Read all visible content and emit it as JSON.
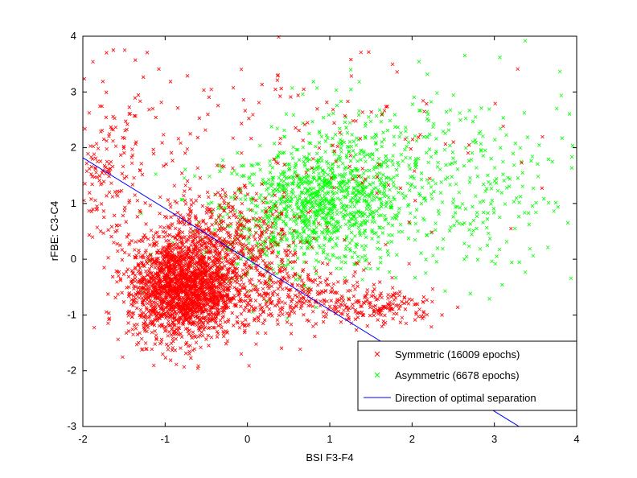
{
  "chart_data": {
    "type": "scatter",
    "title": "",
    "xlabel": "BSI F3-F4",
    "ylabel": "rFBE: C3-C4",
    "xlim": [
      -2,
      4
    ],
    "ylim": [
      -3,
      4
    ],
    "xticks": [
      "-2",
      "-1",
      "0",
      "1",
      "2",
      "3",
      "4"
    ],
    "yticks": [
      "-3",
      "-2",
      "-1",
      "0",
      "1",
      "2",
      "3",
      "4"
    ],
    "grid": false,
    "legend_position": "bottom-right",
    "series": [
      {
        "name": "Symmetric (16009 epochs)",
        "marker": "x",
        "color": "#ff0000",
        "clusters": [
          {
            "center": [
              -0.8,
              -0.55
            ],
            "spread": [
              0.32,
              0.45
            ],
            "weight": 0.55
          },
          {
            "center": [
              -0.35,
              0.1
            ],
            "spread": [
              0.45,
              0.55
            ],
            "weight": 0.22
          },
          {
            "center": [
              0.6,
              -0.6
            ],
            "spread": [
              0.55,
              0.3
            ],
            "weight": 0.08
          },
          {
            "center": [
              1.6,
              -0.85
            ],
            "spread": [
              0.35,
              0.15
            ],
            "weight": 0.05
          },
          {
            "center": [
              -1.7,
              1.5
            ],
            "spread": [
              0.2,
              0.6
            ],
            "weight": 0.04
          },
          {
            "center": [
              0.2,
              2.0
            ],
            "spread": [
              1.6,
              1.0
            ],
            "weight": 0.06
          }
        ]
      },
      {
        "name": "Asymmetric (6678 epochs)",
        "marker": "x",
        "color": "#00ff00",
        "clusters": [
          {
            "center": [
              0.8,
              0.95
            ],
            "spread": [
              0.55,
              0.5
            ],
            "weight": 0.55
          },
          {
            "center": [
              1.5,
              1.5
            ],
            "spread": [
              0.6,
              0.7
            ],
            "weight": 0.25
          },
          {
            "center": [
              2.9,
              1.3
            ],
            "spread": [
              0.55,
              0.9
            ],
            "weight": 0.12
          },
          {
            "center": [
              0.0,
              0.1
            ],
            "spread": [
              0.5,
              0.45
            ],
            "weight": 0.08
          }
        ]
      }
    ],
    "separation_line": {
      "name": "Direction of optimal separation",
      "color": "#0000ff",
      "x": [
        -2,
        3.3
      ],
      "y": [
        1.82,
        -3.0
      ]
    }
  }
}
